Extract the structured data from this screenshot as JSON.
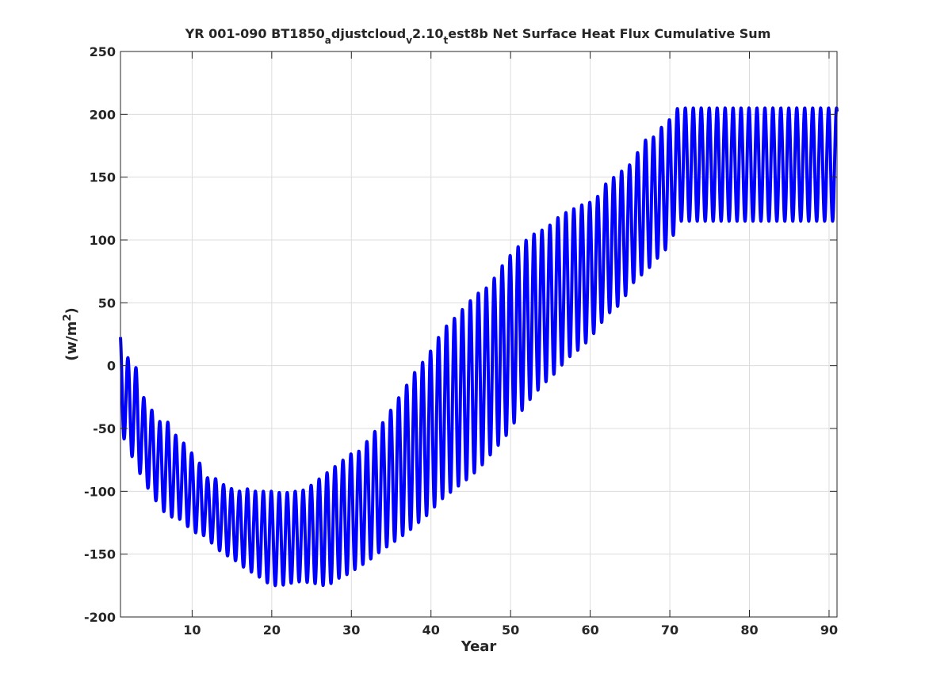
{
  "chart_data": {
    "type": "line",
    "title": {
      "segments": [
        {
          "text": "YR 001-090 BT1850",
          "sub": false
        },
        {
          "text": "a",
          "sub": true
        },
        {
          "text": "djustcloud",
          "sub": false
        },
        {
          "text": "v",
          "sub": true
        },
        {
          "text": "2.10",
          "sub": false
        },
        {
          "text": "t",
          "sub": true
        },
        {
          "text": "est8b Net Surface Heat Flux  Cumulative Sum",
          "sub": false
        }
      ]
    },
    "xlabel": "Year",
    "ylabel": {
      "base": "(w/m",
      "sup": "2",
      "close": ")"
    },
    "xlim": [
      1,
      91
    ],
    "ylim": [
      -200,
      250
    ],
    "xticks": [
      10,
      20,
      30,
      40,
      50,
      60,
      70,
      80,
      90
    ],
    "xtick_labels": [
      "10",
      "20",
      "30",
      "40",
      "50",
      "60",
      "70",
      "80",
      "90"
    ],
    "yticks": [
      250,
      200,
      150,
      100,
      50,
      0,
      -50,
      -100,
      -150,
      -200
    ],
    "ytick_labels": [
      "250",
      "200",
      "150",
      "100",
      "50",
      "0",
      "-50",
      "-100",
      "-150",
      "-200"
    ],
    "grid": true,
    "series": [
      {
        "color": "#0000ff",
        "cycles_per_year": 1,
        "annual_max": [
          25,
          5,
          -2,
          -27,
          -36,
          -45,
          -45,
          -56,
          -62,
          -70,
          -78,
          -90,
          -90,
          -95,
          -98,
          -100,
          -98,
          -100,
          -100,
          -100,
          -101,
          -101,
          -100,
          -99,
          -95,
          -90,
          -85,
          -80,
          -75,
          -70,
          -68,
          -60,
          -52,
          -45,
          -35,
          -25,
          -15,
          -5,
          3,
          12,
          23,
          32,
          38,
          45,
          52,
          58,
          62,
          70,
          80,
          88,
          95,
          100,
          105,
          108,
          112,
          118,
          122,
          125,
          128,
          130,
          135,
          145,
          150,
          155,
          160,
          170,
          180,
          182,
          190,
          196,
          205
        ],
        "annual_min": [
          -52,
          -66,
          -80,
          -93,
          -103,
          -113,
          -120,
          -121,
          -124,
          -133,
          -133,
          -138,
          -145,
          -150,
          -153,
          -158,
          -163,
          -166,
          -171,
          -175,
          -175,
          -174,
          -172,
          -172,
          -173,
          -174,
          -176,
          -170,
          -168,
          -164,
          -160,
          -156,
          -151,
          -146,
          -142,
          -137,
          -133,
          -127,
          -122,
          -116,
          -108,
          -103,
          -98,
          -93,
          -88,
          -82,
          -75,
          -66,
          -60,
          -50,
          -40,
          -30,
          -23,
          -15,
          -10,
          -3,
          5,
          10,
          15,
          22,
          30,
          40,
          45,
          50,
          63,
          70,
          75,
          82,
          90,
          95,
          115
        ],
        "note_x_range": [
          1,
          91
        ]
      }
    ]
  }
}
